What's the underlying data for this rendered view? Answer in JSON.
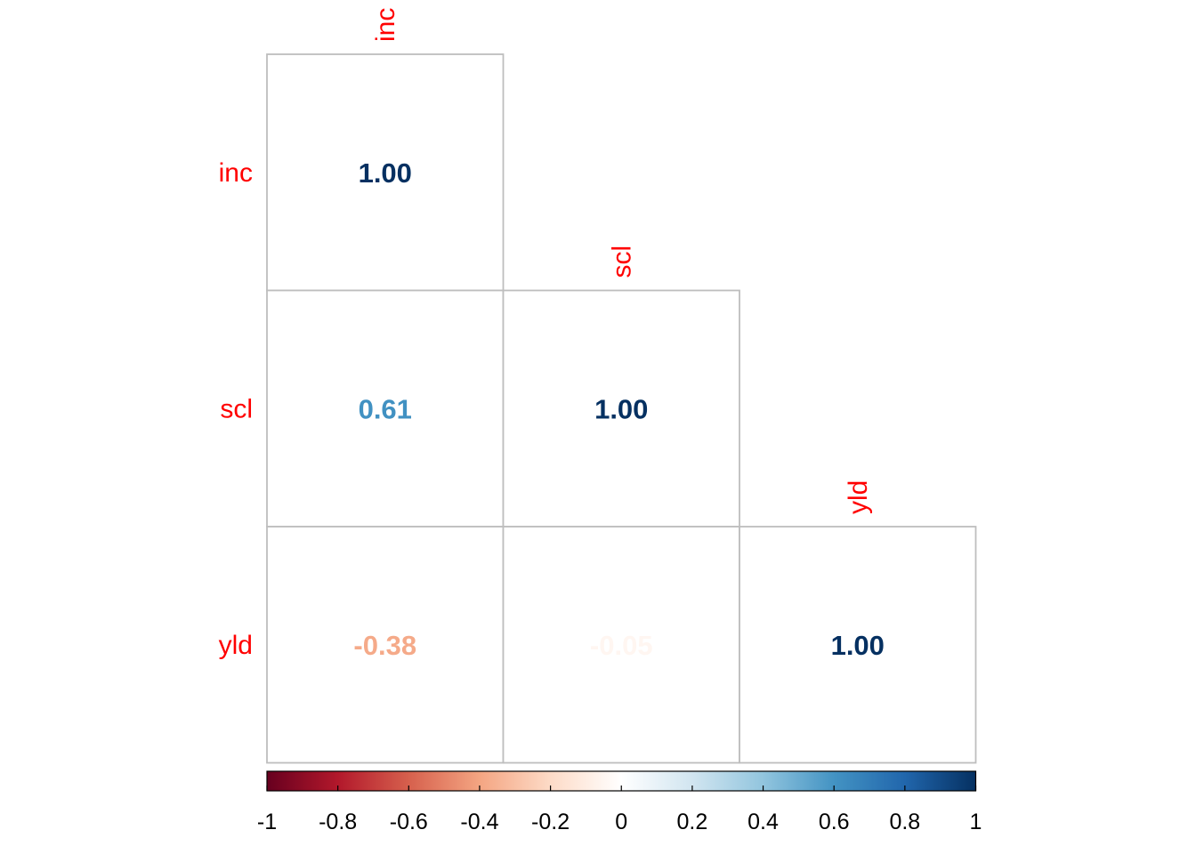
{
  "chart_data": {
    "type": "heatmap",
    "variant": "lower-triangular correlation matrix (number method)",
    "variables": [
      "inc",
      "scl",
      "yld"
    ],
    "matrix": [
      [
        1.0,
        null,
        null
      ],
      [
        0.61,
        1.0,
        null
      ],
      [
        -0.38,
        -0.05,
        1.0
      ]
    ],
    "value_labels": [
      [
        "1.00",
        null,
        null
      ],
      [
        "0.61",
        "1.00",
        null
      ],
      [
        "-0.38",
        "-0.05",
        "1.00"
      ]
    ],
    "label_color": "#ff0000",
    "grid_color": "#bebebe",
    "colorbar": {
      "range": [
        -1,
        1
      ],
      "ticks": [
        "-1",
        "-0.8",
        "-0.6",
        "-0.4",
        "-0.2",
        "0",
        "0.2",
        "0.4",
        "0.6",
        "0.8",
        "1"
      ],
      "orientation": "horizontal",
      "placement": "bottom",
      "palette": [
        "#67001F",
        "#B2182B",
        "#D6604D",
        "#F4A582",
        "#FDDBC7",
        "#FFFFFF",
        "#D1E5F0",
        "#92C5DE",
        "#4393C3",
        "#2166AC",
        "#053061"
      ]
    }
  }
}
